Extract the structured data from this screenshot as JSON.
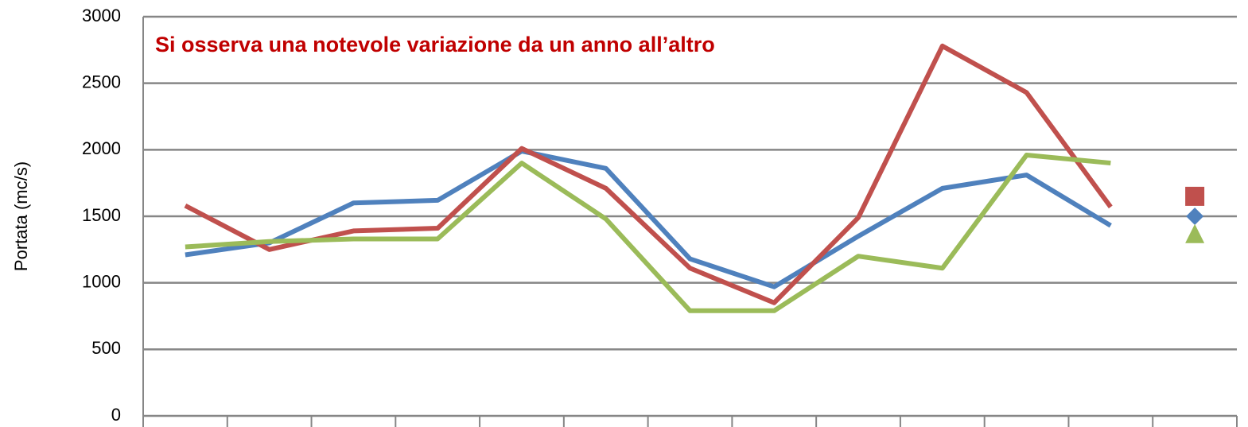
{
  "chart_data": {
    "type": "line",
    "annotation": "Si osserva una notevole variazione da un anno all’altro",
    "y_label": "Portata (mc/s)",
    "categories": [
      null,
      null,
      null,
      null,
      null,
      null,
      null,
      null,
      null,
      null,
      null,
      null,
      null
    ],
    "series": [
      {
        "color": "#4f81bd",
        "marker": "diamond",
        "values": [
          1210,
          1300,
          1600,
          1620,
          1990,
          1860,
          1180,
          970,
          1350,
          1710,
          1810,
          1430,
          null
        ],
        "marker_values": [
          null,
          null,
          null,
          null,
          null,
          null,
          null,
          null,
          null,
          null,
          null,
          null,
          1500
        ]
      },
      {
        "color": "#c0504d",
        "marker": "square",
        "values": [
          1580,
          1250,
          1390,
          1410,
          2010,
          1710,
          1110,
          850,
          1490,
          2780,
          2430,
          1570,
          null
        ],
        "marker_values": [
          null,
          null,
          null,
          null,
          null,
          null,
          null,
          null,
          null,
          null,
          null,
          null,
          1650
        ]
      },
      {
        "color": "#9bbb59",
        "marker": "triangle",
        "values": [
          1270,
          1310,
          1330,
          1330,
          1900,
          1480,
          790,
          790,
          1200,
          1110,
          1960,
          1900,
          null
        ],
        "marker_values": [
          null,
          null,
          null,
          null,
          null,
          null,
          null,
          null,
          null,
          null,
          null,
          null,
          1370
        ]
      }
    ],
    "ylim": [
      0,
      3000
    ],
    "yticks": [
      0,
      500,
      1000,
      1500,
      2000,
      2500,
      3000
    ],
    "grid": true
  }
}
